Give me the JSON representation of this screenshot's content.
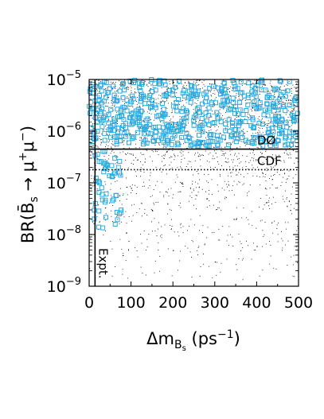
{
  "chart_data": {
    "type": "scatter",
    "xlabel": "Δm_Bs (ps⁻¹)",
    "ylabel": "BR(B̄s → μ⁺μ⁻)",
    "xlim": [
      0,
      500
    ],
    "ylim": [
      1e-09,
      1e-05
    ],
    "y_scale": "log",
    "x_ticks": [
      "0",
      "100",
      "200",
      "300",
      "400",
      "500"
    ],
    "y_ticks": [
      {
        "base": "10",
        "exp": "−9"
      },
      {
        "base": "10",
        "exp": "−8"
      },
      {
        "base": "10",
        "exp": "−7"
      },
      {
        "base": "10",
        "exp": "−6"
      },
      {
        "base": "10",
        "exp": "−5"
      }
    ],
    "limits": [
      {
        "label": "DØ",
        "y": 4.5e-07,
        "style": "solid"
      },
      {
        "label": "CDF",
        "y": 1.8e-07,
        "style": "dotted"
      }
    ],
    "expt": {
      "label": "Expt.",
      "x": 14
    },
    "series": [
      {
        "marker": "dot",
        "color": "#000000",
        "description_points": [
          [
            20,
            8e-06
          ],
          [
            60,
            5e-06
          ],
          [
            120,
            3e-06
          ],
          [
            180,
            2e-06
          ],
          [
            250,
            5e-06
          ],
          [
            320,
            3e-06
          ],
          [
            400,
            6e-06
          ],
          [
            470,
            4e-06
          ],
          [
            40,
            2e-07
          ],
          [
            100,
            8e-08
          ],
          [
            150,
            3e-08
          ],
          [
            220,
            1e-07
          ],
          [
            280,
            5e-08
          ],
          [
            350,
            2e-08
          ],
          [
            420,
            8e-08
          ],
          [
            480,
            3e-08
          ],
          [
            200,
            5e-09
          ],
          [
            300,
            3e-09
          ],
          [
            400,
            6e-09
          ],
          [
            80,
            4e-09
          ]
        ]
      },
      {
        "marker": "open-square",
        "color": "#29abe2",
        "description_points": [
          [
            10,
            8e-06
          ],
          [
            30,
            6e-06
          ],
          [
            60,
            5e-06
          ],
          [
            90,
            4e-06
          ],
          [
            120,
            7e-06
          ],
          [
            150,
            3e-06
          ],
          [
            200,
            5e-06
          ],
          [
            260,
            6e-06
          ],
          [
            320,
            4e-06
          ],
          [
            380,
            5e-06
          ],
          [
            440,
            3e-06
          ],
          [
            490,
            4e-06
          ],
          [
            20,
            1e-06
          ],
          [
            40,
            2e-07
          ],
          [
            60,
            1.5e-07
          ],
          [
            30,
            8e-08
          ],
          [
            12,
            2e-08
          ],
          [
            15,
            4e-08
          ],
          [
            25,
            1e-07
          ],
          [
            70,
            2e-07
          ]
        ]
      }
    ]
  }
}
